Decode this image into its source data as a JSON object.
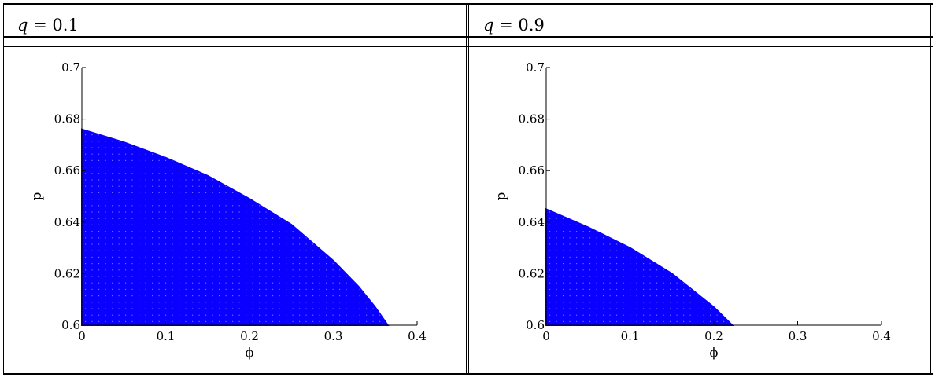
{
  "headers": [
    {
      "var": "q",
      "eq": " = ",
      "value": "0.1"
    },
    {
      "var": "q",
      "eq": " = ",
      "value": "0.9"
    }
  ],
  "colors": {
    "fill": "#0a00ff",
    "dots": "#6f6bff"
  },
  "chart_data": [
    {
      "type": "area",
      "title": "",
      "xlabel": "ϕ",
      "ylabel": "p",
      "xlim": [
        0,
        0.4
      ],
      "ylim": [
        0.6,
        0.7
      ],
      "xticks": [
        "0",
        "0.1",
        "0.2",
        "0.3",
        "0.4"
      ],
      "yticks": [
        "0.6",
        "0.62",
        "0.64",
        "0.66",
        "0.68",
        "0.7"
      ],
      "boundary": {
        "x": [
          0,
          0.05,
          0.1,
          0.15,
          0.2,
          0.25,
          0.3,
          0.33,
          0.35,
          0.365
        ],
        "y": [
          0.676,
          0.671,
          0.665,
          0.658,
          0.649,
          0.639,
          0.625,
          0.615,
          0.607,
          0.6
        ]
      }
    },
    {
      "type": "area",
      "title": "",
      "xlabel": "ϕ",
      "ylabel": "p",
      "xlim": [
        0,
        0.4
      ],
      "ylim": [
        0.6,
        0.7
      ],
      "xticks": [
        "0",
        "0.1",
        "0.2",
        "0.3",
        "0.4"
      ],
      "yticks": [
        "0.6",
        "0.62",
        "0.64",
        "0.66",
        "0.68",
        "0.7"
      ],
      "boundary": {
        "x": [
          0,
          0.05,
          0.1,
          0.15,
          0.2,
          0.222
        ],
        "y": [
          0.645,
          0.638,
          0.63,
          0.62,
          0.607,
          0.6
        ]
      }
    }
  ]
}
